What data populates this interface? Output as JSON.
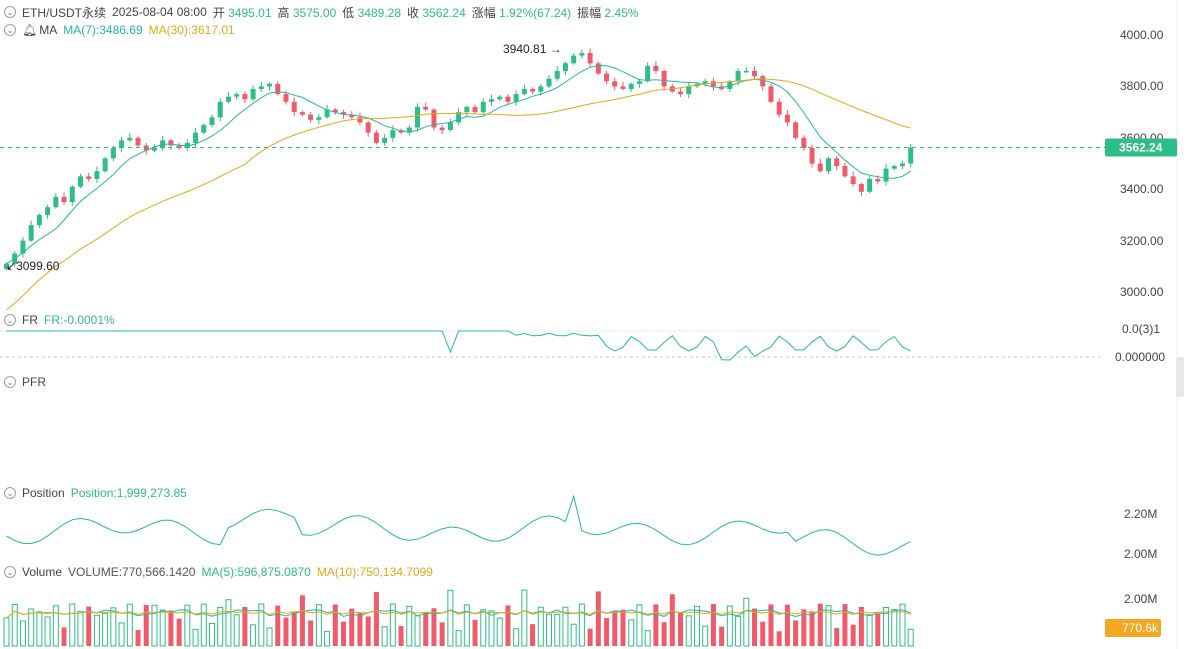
{
  "header": {
    "symbol": "ETH/USDT永续",
    "datetime": "2025-08-04 08:00",
    "open_label": "开",
    "open": "3495.01",
    "high_label": "高",
    "high": "3575.00",
    "low_label": "低",
    "low": "3489.28",
    "close_label": "收",
    "close": "3562.24",
    "change_label": "涨幅",
    "change": "1.92%(67.24)",
    "amp_label": "振幅",
    "amp": "2.45%"
  },
  "ma_header": {
    "name": "MA",
    "ma7": "MA(7):3486.69",
    "ma30": "MA(30):3617.01"
  },
  "fr_header": {
    "name": "FR",
    "value": "FR:-0.0001%"
  },
  "pfr_header": {
    "name": "PFR"
  },
  "position_header": {
    "name": "Position",
    "value": "Position:1,999,273.85"
  },
  "volume_header": {
    "name": "Volume",
    "value": "VOLUME:770,566.1420",
    "ma5": "MA(5):596,875.0870",
    "ma10": "MA(10):750,134.7099"
  },
  "colors": {
    "up": "#2ebd85",
    "down": "#ef5b6b",
    "ma7": "#26b8a4",
    "ma30": "#e6a817",
    "last_price_tag": "#2ebd85",
    "volume_tag": "#f5a623"
  },
  "chart_data": [
    {
      "type": "candlestick",
      "title": "ETH/USDT永续",
      "y_ticks": [
        "4000.00",
        "3800.00",
        "3600.00",
        "3400.00",
        "3200.00",
        "3000.00"
      ],
      "ylim": [
        2950,
        4060
      ],
      "high_annotation": "3940.81",
      "low_annotation": "3099.60",
      "last_price": 3562.24,
      "last_price_label": "3562.24",
      "grid": false,
      "series": [
        {
          "name": "MA(7)"
        },
        {
          "name": "MA(30)"
        }
      ]
    },
    {
      "type": "line",
      "title": "FR",
      "y_ticks": [
        "0.0(3)1",
        "0.000000"
      ]
    },
    {
      "type": "line",
      "title": "Position",
      "y_ticks": [
        "2.20M",
        "2.00M"
      ]
    },
    {
      "type": "bar",
      "title": "Volume",
      "y_ticks": [
        "2.00M"
      ],
      "last_volume_label": "770.6k"
    }
  ]
}
